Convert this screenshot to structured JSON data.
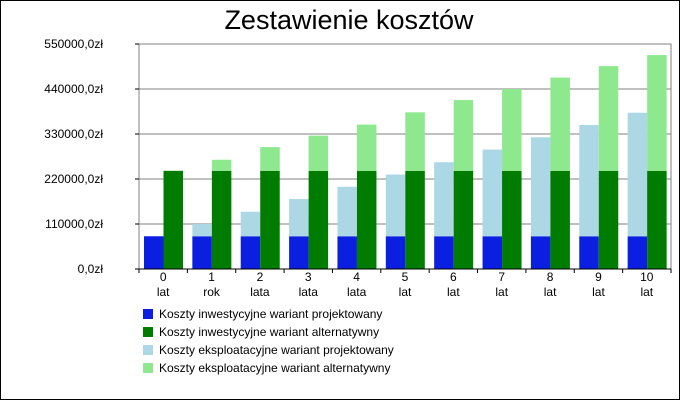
{
  "chart_data": {
    "type": "bar",
    "title": "Zestawienie kosztów",
    "xlabel": "",
    "ylabel": "",
    "ylim": [
      0,
      550000
    ],
    "y_ticks": [
      "0,0zł",
      "110000,0zł",
      "220000,0zł",
      "330000,0zł",
      "440000,0zł",
      "550000,0zł"
    ],
    "y_tick_values": [
      0,
      110000,
      220000,
      330000,
      440000,
      550000
    ],
    "grid": "horizontal",
    "legend_position": "bottom",
    "categories": [
      [
        "0",
        "lat"
      ],
      [
        "1",
        "rok"
      ],
      [
        "2",
        "lata"
      ],
      [
        "3",
        "lata"
      ],
      [
        "4",
        "lata"
      ],
      [
        "5",
        "lat"
      ],
      [
        "6",
        "lat"
      ],
      [
        "7",
        "lat"
      ],
      [
        "8",
        "lat"
      ],
      [
        "9",
        "lat"
      ],
      [
        "10",
        "lat"
      ]
    ],
    "groups": [
      {
        "stack": [
          "Koszty inwestycyjne wariant projektowany",
          "Koszty eksploatacyjne wariant projektowany"
        ]
      },
      {
        "stack": [
          "Koszty inwestycyjne wariant alternatywny",
          "Koszty eksploatacyjne wariant alternatywny"
        ]
      }
    ],
    "series": [
      {
        "name": "Koszty inwestycyjne wariant projektowany",
        "color": "#0a1fe0",
        "values": [
          80000,
          80000,
          80000,
          80000,
          80000,
          80000,
          80000,
          80000,
          80000,
          80000,
          80000
        ]
      },
      {
        "name": "Koszty inwestycyjne wariant alternatywny",
        "color": "#007d00",
        "values": [
          240000,
          240000,
          240000,
          240000,
          240000,
          240000,
          240000,
          240000,
          240000,
          240000,
          240000
        ]
      },
      {
        "name": "Koszty eksploatacyjne wariant projektowany",
        "color": "#acd8e6",
        "values": [
          0,
          30000,
          60000,
          91000,
          121000,
          151000,
          181000,
          212000,
          242000,
          272000,
          302000
        ]
      },
      {
        "name": "Koszty eksploatacyjne wariant alternatywny",
        "color": "#8ee98e",
        "values": [
          0,
          27000,
          58000,
          86000,
          113000,
          143000,
          173000,
          200000,
          228000,
          256000,
          283000
        ]
      }
    ]
  }
}
